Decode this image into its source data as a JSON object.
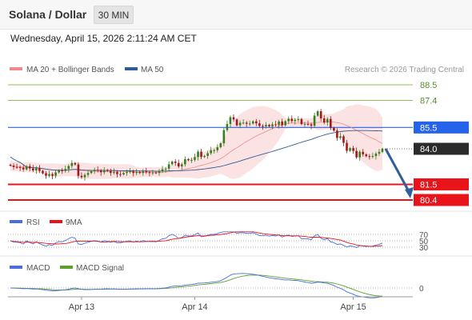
{
  "header": {
    "title": "Solana / Dollar",
    "interval": "30 MIN"
  },
  "datetime": "Wednesday, April 15, 2026 2:11:24 AM CET",
  "legend": {
    "bollinger": "MA 20 + Bollinger Bands",
    "ma50": "MA 50",
    "credit": "Research © 2026 Trading Central"
  },
  "colors": {
    "bollinger": "#f08a8a",
    "ma50": "#2f5b97",
    "candle_up": "#3a7d1f",
    "candle_down": "#9e1a1a",
    "support": "#e8141a",
    "resistance": "#2563eb",
    "target": "#8fbf5a",
    "current": "#2b2b2b",
    "arrow": "#2f5e9a",
    "rsi": "#4a6fdc",
    "rsi_ma": "#e8141a",
    "macd": "#4a6fdc",
    "macd_signal": "#5aa02c"
  },
  "chart_data": [
    {
      "type": "candlestick",
      "ylim": [
        79.3,
        89.3
      ],
      "x_ticks": [
        "Apr 13",
        "Apr 14",
        "Apr 15"
      ],
      "levels": [
        {
          "label": "88.5",
          "value": 88.5,
          "kind": "target"
        },
        {
          "label": "87.4",
          "value": 87.4,
          "kind": "target"
        },
        {
          "label": "85.5",
          "value": 85.5,
          "kind": "resistance"
        },
        {
          "label": "84.0",
          "value": 84.0,
          "kind": "current"
        },
        {
          "label": "81.5",
          "value": 81.5,
          "kind": "support"
        },
        {
          "label": "80.4",
          "value": 80.4,
          "kind": "support"
        }
      ],
      "forecast": {
        "from": 84.0,
        "to": 80.4
      },
      "series": [
        {
          "name": "MA 20 + Bollinger Bands",
          "kind": "bollinger"
        },
        {
          "name": "MA 50",
          "kind": "ma"
        }
      ],
      "close": [
        82.82,
        82.72,
        82.71,
        82.67,
        82.55,
        82.78,
        82.62,
        82.48,
        82.66,
        82.45,
        82.28,
        82.1,
        82.22,
        82.1,
        82.34,
        82.48,
        82.44,
        82.58,
        82.79,
        83.0,
        82.9,
        82.1,
        82.0,
        82.17,
        82.3,
        82.43,
        82.52,
        82.46,
        82.35,
        82.51,
        82.44,
        82.3,
        82.38,
        82.22,
        82.2,
        82.3,
        82.38,
        82.41,
        82.3,
        82.38,
        82.3,
        82.42,
        82.35,
        82.31,
        82.33,
        82.3,
        82.42,
        82.56,
        82.6,
        82.91,
        83.1,
        83.0,
        82.76,
        82.91,
        83.27,
        83.2,
        83.22,
        83.42,
        83.8,
        83.43,
        83.5,
        83.69,
        83.9,
        83.9,
        84.11,
        84.39,
        85.31,
        85.74,
        86.22,
        86.06,
        85.65,
        85.83,
        85.84,
        85.76,
        85.78,
        85.93,
        85.79,
        85.61,
        85.58,
        85.68,
        85.58,
        85.72,
        85.67,
        85.92,
        85.66,
        85.94,
        86.11,
        85.95,
        86.04,
        86.09,
        85.74,
        85.75,
        85.72,
        85.62,
        86.33,
        86.64,
        86.14,
        85.85,
        86.1,
        85.47,
        85.28,
        84.76,
        84.88,
        84.42,
        83.86,
        84.05,
        83.85,
        83.4,
        83.79,
        83.61,
        83.48,
        83.44,
        83.49,
        83.66,
        83.78,
        84.0
      ]
    },
    {
      "type": "line",
      "title": "RSI",
      "y_ticks": [
        70,
        50,
        30
      ],
      "series": [
        {
          "name": "RSI"
        },
        {
          "name": "9MA"
        }
      ]
    },
    {
      "type": "line",
      "title": "MACD",
      "y_ticks": [
        0
      ],
      "series": [
        {
          "name": "MACD"
        },
        {
          "name": "MACD Signal"
        }
      ]
    }
  ]
}
